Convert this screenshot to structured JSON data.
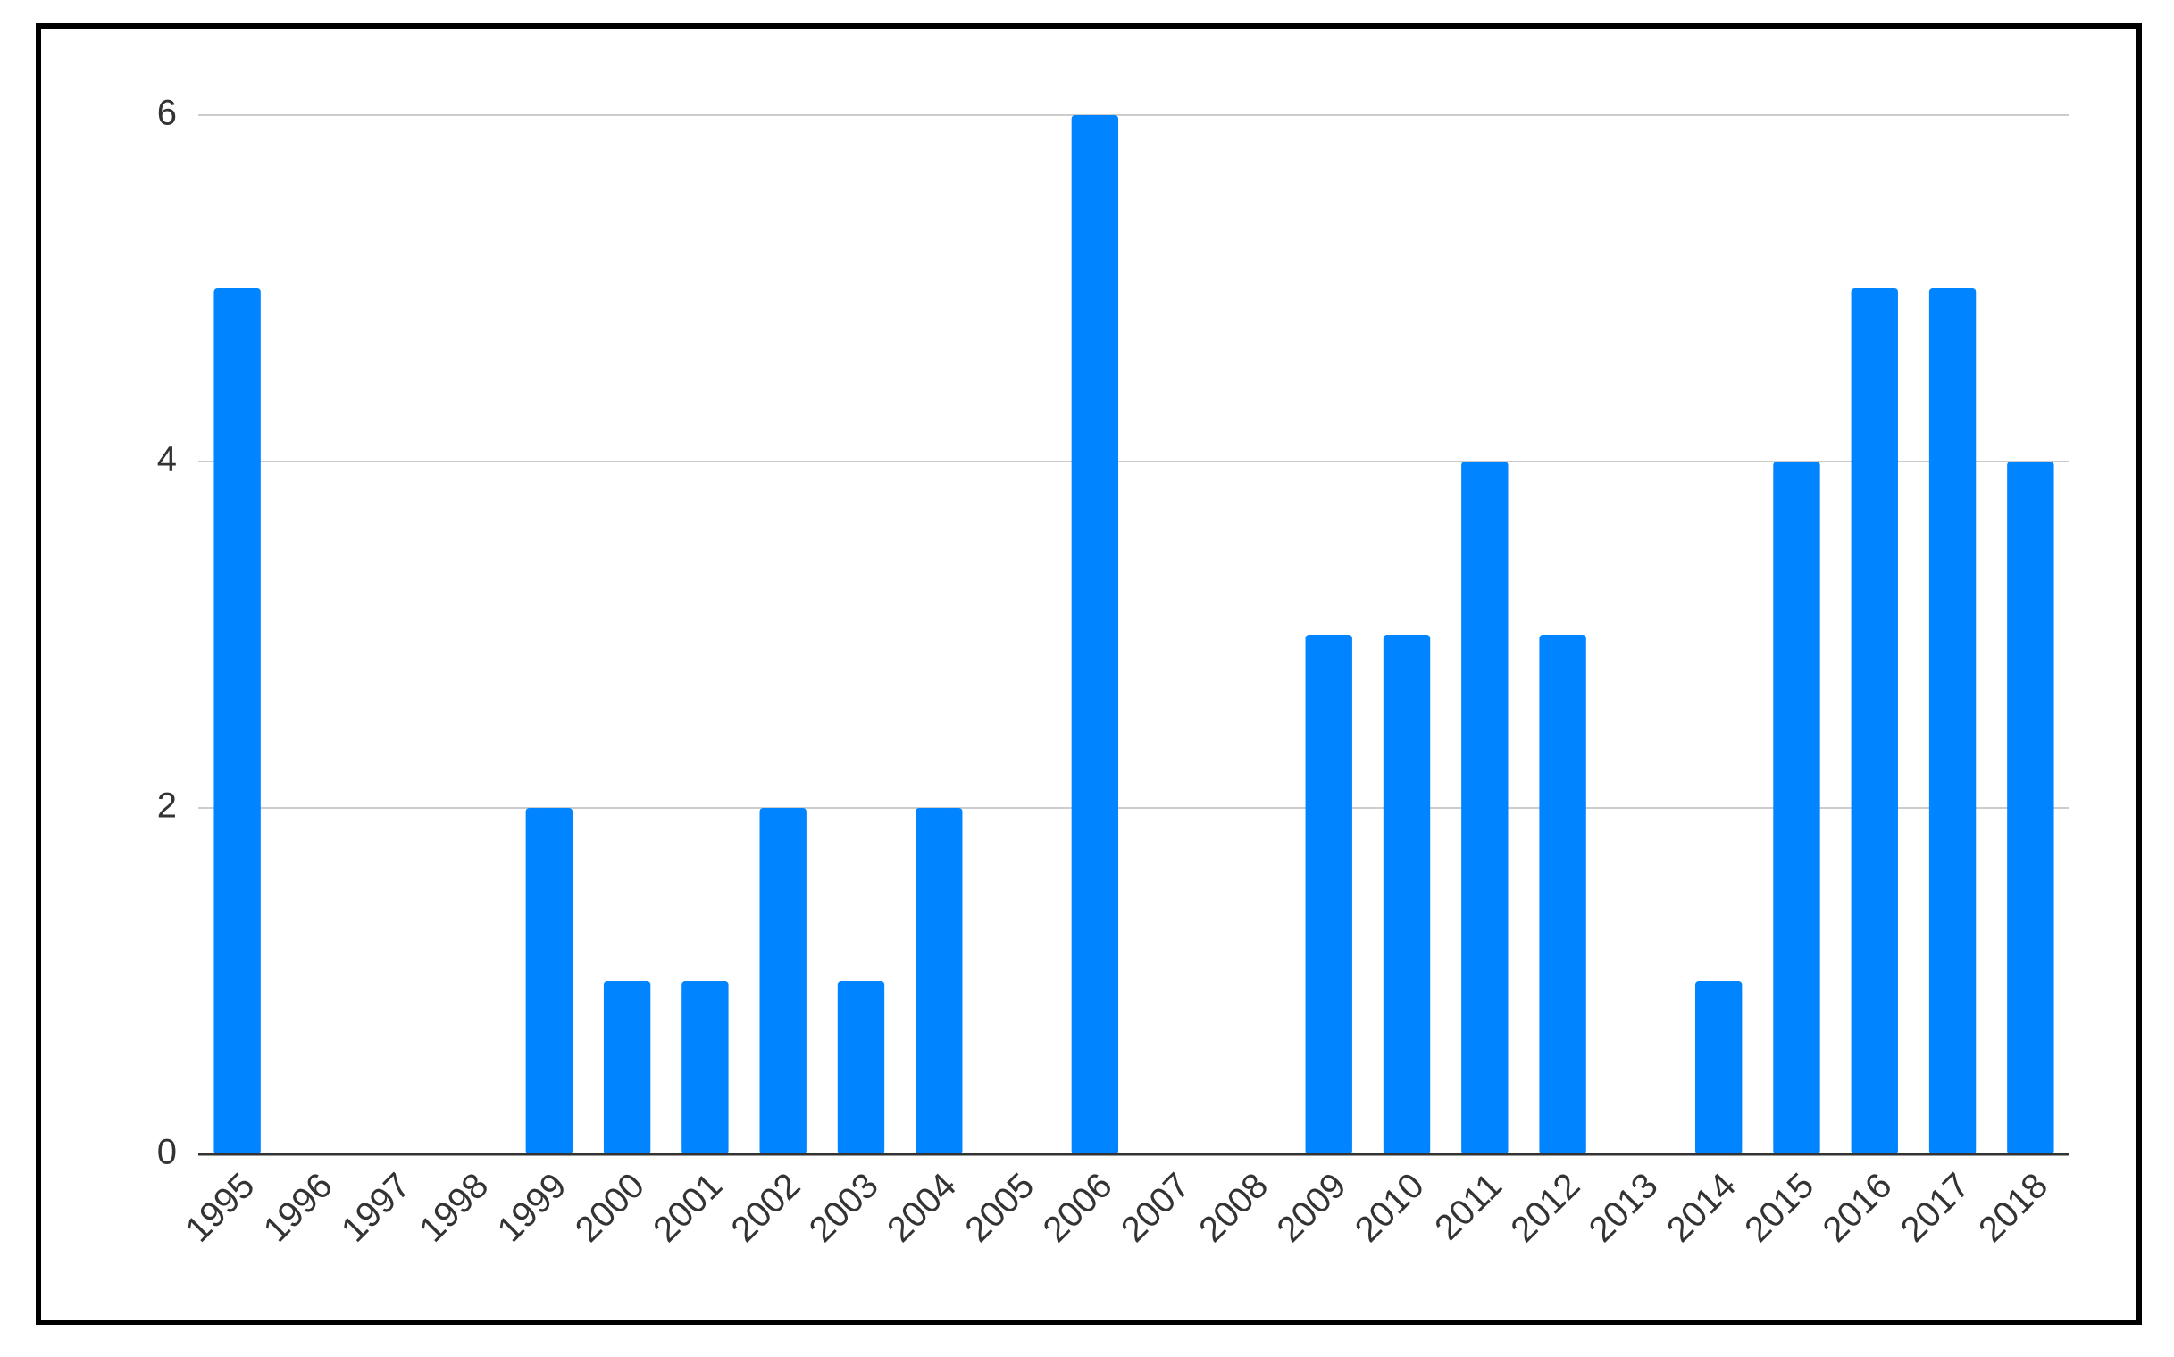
{
  "chart_data": {
    "type": "bar",
    "categories": [
      "1995",
      "1996",
      "1997",
      "1998",
      "1999",
      "2000",
      "2001",
      "2002",
      "2003",
      "2004",
      "2005",
      "2006",
      "2007",
      "2008",
      "2009",
      "2010",
      "2011",
      "2012",
      "2013",
      "2014",
      "2015",
      "2016",
      "2017",
      "2018"
    ],
    "values": [
      5,
      0,
      0,
      0,
      2,
      1,
      1,
      2,
      1,
      2,
      0,
      6,
      0,
      0,
      3,
      3,
      4,
      3,
      0,
      1,
      4,
      5,
      5,
      4
    ],
    "color": "#0084ff",
    "ylim": [
      0,
      6
    ],
    "yticks": [
      0,
      2,
      4,
      6
    ],
    "grid": true
  }
}
